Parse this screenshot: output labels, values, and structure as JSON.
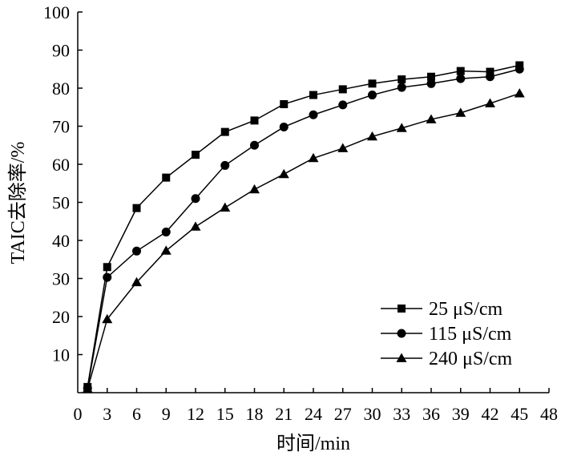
{
  "chart_data": {
    "type": "line",
    "title": "",
    "xlabel": "时间/min",
    "ylabel": "TAIC去除率/%",
    "xlim": [
      0,
      48
    ],
    "ylim": [
      0,
      100
    ],
    "xticks": [
      0,
      3,
      6,
      9,
      12,
      15,
      18,
      21,
      24,
      27,
      30,
      33,
      36,
      39,
      42,
      45,
      48
    ],
    "yticks": [
      10,
      20,
      30,
      40,
      50,
      60,
      70,
      80,
      90,
      100
    ],
    "grid": false,
    "legend_position": "bottom-right",
    "x": [
      1,
      3,
      6,
      9,
      12,
      15,
      18,
      21,
      24,
      27,
      30,
      33,
      36,
      39,
      42,
      45
    ],
    "series": [
      {
        "name": "25 μS/cm",
        "marker": "square",
        "values": [
          1.5,
          33,
          48.5,
          56.5,
          62.5,
          68.5,
          71.5,
          75.8,
          78.2,
          79.7,
          81.2,
          82.3,
          83.0,
          84.5,
          84.3,
          86.0
        ]
      },
      {
        "name": "115 μS/cm",
        "marker": "circle",
        "values": [
          1.2,
          30.3,
          37.2,
          42.2,
          51.0,
          59.7,
          65.0,
          69.8,
          73.0,
          75.6,
          78.2,
          80.2,
          81.2,
          82.5,
          83.0,
          85.0
        ]
      },
      {
        "name": "240 μS/cm",
        "marker": "triangle",
        "values": [
          1.0,
          19.3,
          29.0,
          37.3,
          43.6,
          48.6,
          53.4,
          57.4,
          61.6,
          64.2,
          67.3,
          69.5,
          71.8,
          73.5,
          76.0,
          78.6
        ]
      }
    ]
  }
}
